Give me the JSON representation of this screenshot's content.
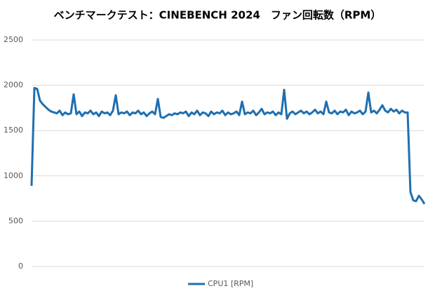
{
  "chart_data": {
    "type": "line",
    "title": "ベンチマークテスト：CINEBENCH 2024　ファン回転数（RPM）",
    "ylim": [
      0,
      2500
    ],
    "yticks": [
      0,
      500,
      1000,
      1500,
      2000,
      2500
    ],
    "grid": true,
    "legend": "bottom",
    "series": [
      {
        "name": "CPU1 [RPM]",
        "color": "#1f6fb0",
        "values": [
          890,
          1970,
          1960,
          1830,
          1790,
          1760,
          1730,
          1710,
          1700,
          1690,
          1720,
          1670,
          1700,
          1680,
          1690,
          1900,
          1680,
          1710,
          1660,
          1700,
          1690,
          1720,
          1680,
          1700,
          1660,
          1710,
          1690,
          1700,
          1670,
          1720,
          1890,
          1680,
          1700,
          1690,
          1710,
          1670,
          1700,
          1690,
          1720,
          1680,
          1700,
          1660,
          1690,
          1710,
          1680,
          1850,
          1650,
          1640,
          1660,
          1680,
          1670,
          1690,
          1680,
          1700,
          1690,
          1710,
          1660,
          1700,
          1680,
          1720,
          1670,
          1700,
          1690,
          1660,
          1710,
          1680,
          1700,
          1690,
          1720,
          1670,
          1700,
          1680,
          1690,
          1710,
          1670,
          1820,
          1680,
          1700,
          1690,
          1720,
          1670,
          1700,
          1740,
          1680,
          1700,
          1690,
          1710,
          1670,
          1700,
          1680,
          1950,
          1630,
          1690,
          1710,
          1680,
          1700,
          1720,
          1690,
          1710,
          1680,
          1700,
          1730,
          1690,
          1710,
          1680,
          1820,
          1700,
          1690,
          1720,
          1680,
          1710,
          1700,
          1730,
          1670,
          1710,
          1690,
          1700,
          1720,
          1680,
          1710,
          1920,
          1700,
          1720,
          1690,
          1730,
          1780,
          1720,
          1700,
          1740,
          1710,
          1730,
          1690,
          1720,
          1700,
          1700,
          820,
          730,
          720,
          780,
          740,
          690
        ]
      }
    ]
  }
}
